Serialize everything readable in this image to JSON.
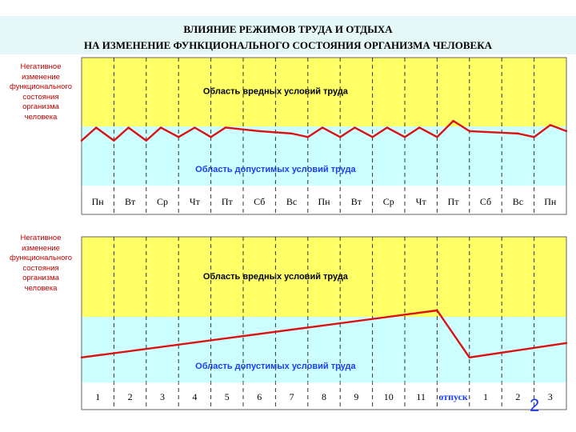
{
  "title": {
    "line1": "ВЛИЯНИЕ РЕЖИМОВ ТРУДА И ОТДЫХА",
    "line2": "НА ИЗМЕНЕНИЕ ФУНКЦИОНАЛЬНОГО СОСТОЯНИЯ ОРГАНИЗМА ЧЕЛОВЕКА"
  },
  "page_number": "2",
  "colors": {
    "harmful_zone": "#ffff66",
    "allowable_zone": "#ccffff",
    "curve": "#dd1111",
    "zone_text_harmful": "#000000",
    "zone_text_allowable": "#1a3cff",
    "side_label": "#c00000",
    "vacation_label": "#1a3cff"
  },
  "chart_data": [
    {
      "type": "line",
      "ylabel": "Негативное изменение функционального состояния организма человека",
      "ylabel_lines": [
        "Негативное",
        "изменение",
        "функционального",
        "состояния",
        "организма",
        "человека"
      ],
      "zones": [
        {
          "name": "Область вредных условий труда",
          "from": 5,
          "to": 10
        },
        {
          "name": "Область допустимых условий труда",
          "from": 0,
          "to": 5
        }
      ],
      "categories": [
        "Пн",
        "Вт",
        "Ср",
        "Чт",
        "Пт",
        "Сб",
        "Вс",
        "Пн",
        "Вт",
        "Ср",
        "Чт",
        "Пт",
        "Сб",
        "Вс",
        "Пн"
      ],
      "x": [
        0,
        0.45,
        1,
        1.45,
        2,
        2.45,
        3,
        3.5,
        4,
        4.45,
        5.5,
        6.5,
        7,
        7.45,
        8,
        8.45,
        9,
        9.45,
        10,
        10.45,
        11,
        11.5,
        12,
        13.5,
        14,
        14.5,
        15
      ],
      "values": [
        3.8,
        4.9,
        3.8,
        4.9,
        3.8,
        4.9,
        4.1,
        4.9,
        4.1,
        4.9,
        4.6,
        4.4,
        4.1,
        4.9,
        4.1,
        4.9,
        4.1,
        4.9,
        4.1,
        4.9,
        4.1,
        5.4,
        4.6,
        4.4,
        4.1,
        5.1,
        4.6
      ],
      "ylim": [
        0,
        10
      ],
      "xlim": [
        0,
        15
      ],
      "grid": "vertical dashed"
    },
    {
      "type": "line",
      "ylabel": "Негативное изменение функционального состояния организма человека",
      "ylabel_lines": [
        "Негативное",
        "изменение",
        "функционального",
        "состояния",
        "организма",
        "человека"
      ],
      "zones": [
        {
          "name": "Область вредных условий труда",
          "from": 5,
          "to": 10
        },
        {
          "name": "Область допустимых условий труда",
          "from": 0,
          "to": 5
        }
      ],
      "categories": [
        "1",
        "2",
        "3",
        "4",
        "5",
        "6",
        "7",
        "8",
        "9",
        "10",
        "11",
        "отпуск",
        "1",
        "2",
        "3"
      ],
      "x": [
        0,
        11,
        12,
        15
      ],
      "values": [
        1.9,
        5.4,
        1.9,
        3.0
      ],
      "ylim": [
        0,
        10
      ],
      "xlim": [
        0,
        15
      ],
      "grid": "vertical dashed"
    }
  ]
}
